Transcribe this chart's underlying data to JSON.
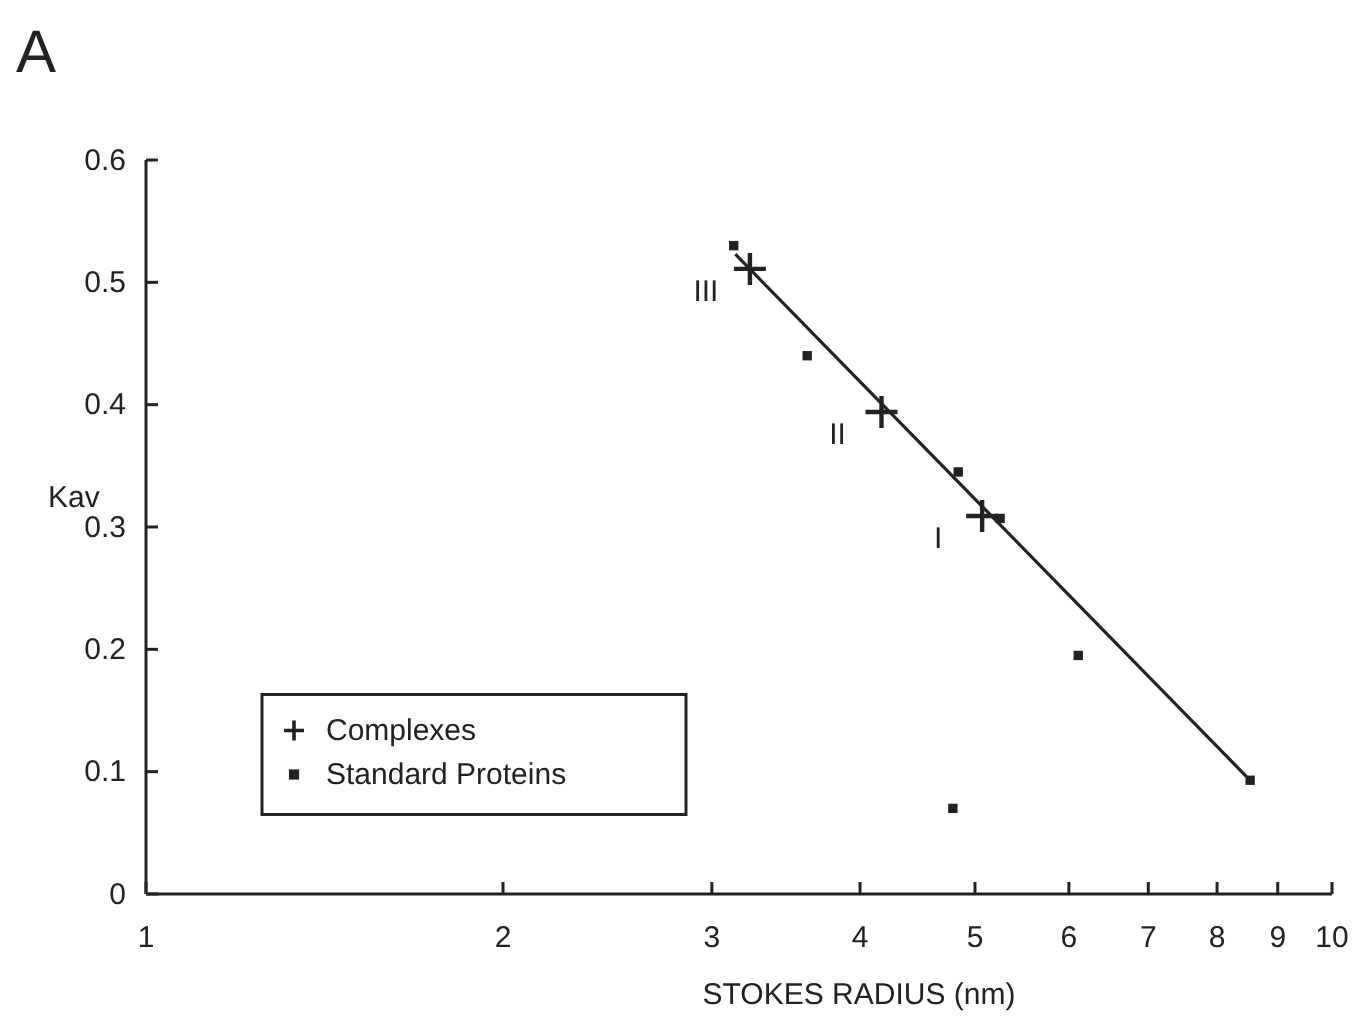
{
  "chart_data": {
    "type": "scatter",
    "title": "A",
    "xlabel": "STOKES RADIUS (nm)",
    "ylabel": "Kav",
    "log": "x",
    "xlim": [
      1,
      10
    ],
    "xticks": [
      1,
      2,
      3,
      4,
      5,
      6,
      7,
      8,
      9,
      10
    ],
    "ylim": [
      0,
      0.6
    ],
    "yticks": [
      0,
      0.1,
      0.2,
      0.3,
      0.4,
      0.5,
      0.6
    ],
    "grid": false,
    "legend": "bottom left",
    "series": [
      {
        "type": "line",
        "color": "#222222",
        "x": [
          3.14,
          8.47
        ],
        "values": [
          0.523,
          0.096
        ],
        "marker": "none",
        "line_style": "solid"
      },
      {
        "name": "Complexes",
        "color": "#222222",
        "marker": "cross",
        "x": [
          3.23,
          4.17,
          5.07
        ],
        "values": [
          0.511,
          0.394,
          0.309
        ]
      },
      {
        "name": "Standard Proteins",
        "color": "#222222",
        "marker": "square",
        "x": [
          3.13,
          3.61,
          4.84,
          5.25,
          6.11,
          8.53,
          4.79
        ],
        "values": [
          0.53,
          0.44,
          0.345,
          0.307,
          0.195,
          0.093,
          0.07
        ]
      }
    ],
    "annotations": [
      {
        "text": "III",
        "x": 3.23,
        "y": 0.511
      },
      {
        "text": "II",
        "x": 4.17,
        "y": 0.394
      },
      {
        "text": "I",
        "x": 5.07,
        "y": 0.309
      }
    ]
  }
}
